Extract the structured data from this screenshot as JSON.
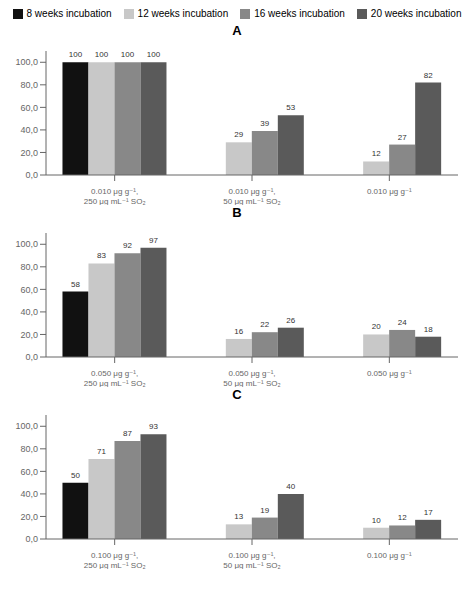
{
  "chart_data": [
    {
      "type": "bar",
      "title": "A",
      "legend": "top",
      "data_labels": true,
      "grid": false,
      "categories": [
        "0.010 μg g⁻¹, 250 μg mL⁻¹ SO₂",
        "0.010 μg g⁻¹, 50 μg mL⁻¹ SO₂",
        "0.010 μg g⁻¹"
      ],
      "series": [
        {
          "name": "8 weeks incubation",
          "color": "#111111",
          "values": [
            100,
            0,
            0
          ]
        },
        {
          "name": "12 weeks incubation",
          "color": "#c8c8c8",
          "values": [
            100,
            29,
            12
          ]
        },
        {
          "name": "16 weeks incubation",
          "color": "#888888",
          "values": [
            100,
            39,
            27
          ]
        },
        {
          "name": "20 weeks incubation",
          "color": "#5a5a5a",
          "values": [
            100,
            53,
            82
          ]
        }
      ],
      "ylim": [
        0,
        110
      ],
      "yticks": [
        {
          "value": 0,
          "label": "0,0"
        },
        {
          "value": 20,
          "label": "20,0"
        },
        {
          "value": 40,
          "label": "40,0"
        },
        {
          "value": 60,
          "label": "60,0"
        },
        {
          "value": 80,
          "label": "80,0"
        },
        {
          "value": 100,
          "label": "100,0"
        }
      ]
    },
    {
      "type": "bar",
      "title": "B",
      "data_labels": true,
      "grid": false,
      "categories": [
        "0.050 μg g⁻¹, 250 μg mL⁻¹ SO₂",
        "0.050 μg g⁻¹, 50 μg mL⁻¹ SO₂",
        "0.050 μg g⁻¹"
      ],
      "series": [
        {
          "name": "8 weeks incubation",
          "color": "#111111",
          "values": [
            58,
            0,
            0
          ]
        },
        {
          "name": "12 weeks incubation",
          "color": "#c8c8c8",
          "values": [
            83,
            16,
            20
          ]
        },
        {
          "name": "16 weeks incubation",
          "color": "#888888",
          "values": [
            92,
            22,
            24
          ]
        },
        {
          "name": "20 weeks incubation",
          "color": "#5a5a5a",
          "values": [
            97,
            26,
            18
          ]
        }
      ],
      "ylim": [
        0,
        110
      ],
      "yticks": [
        {
          "value": 0,
          "label": "0,0"
        },
        {
          "value": 20,
          "label": "20,0"
        },
        {
          "value": 40,
          "label": "40,0"
        },
        {
          "value": 60,
          "label": "60,0"
        },
        {
          "value": 80,
          "label": "80,0"
        },
        {
          "value": 100,
          "label": "100,0"
        }
      ]
    },
    {
      "type": "bar",
      "title": "C",
      "data_labels": true,
      "grid": false,
      "categories": [
        "0.100 μg g⁻¹, 250 μg mL⁻¹ SO₂",
        "0.100 μg g⁻¹, 50 μg mL⁻¹ SO₂",
        "0.100 μg g⁻¹"
      ],
      "series": [
        {
          "name": "8 weeks incubation",
          "color": "#111111",
          "values": [
            50,
            0,
            0
          ]
        },
        {
          "name": "12 weeks incubation",
          "color": "#c8c8c8",
          "values": [
            71,
            13,
            10
          ]
        },
        {
          "name": "16 weeks incubation",
          "color": "#888888",
          "values": [
            87,
            19,
            12
          ]
        },
        {
          "name": "20 weeks incubation",
          "color": "#5a5a5a",
          "values": [
            93,
            40,
            17
          ]
        }
      ],
      "ylim": [
        0,
        110
      ],
      "yticks": [
        {
          "value": 0,
          "label": "0,0"
        },
        {
          "value": 20,
          "label": "20,0"
        },
        {
          "value": 40,
          "label": "40,0"
        },
        {
          "value": 60,
          "label": "60,0"
        },
        {
          "value": 80,
          "label": "80,0"
        },
        {
          "value": 100,
          "label": "100,0"
        }
      ]
    }
  ]
}
